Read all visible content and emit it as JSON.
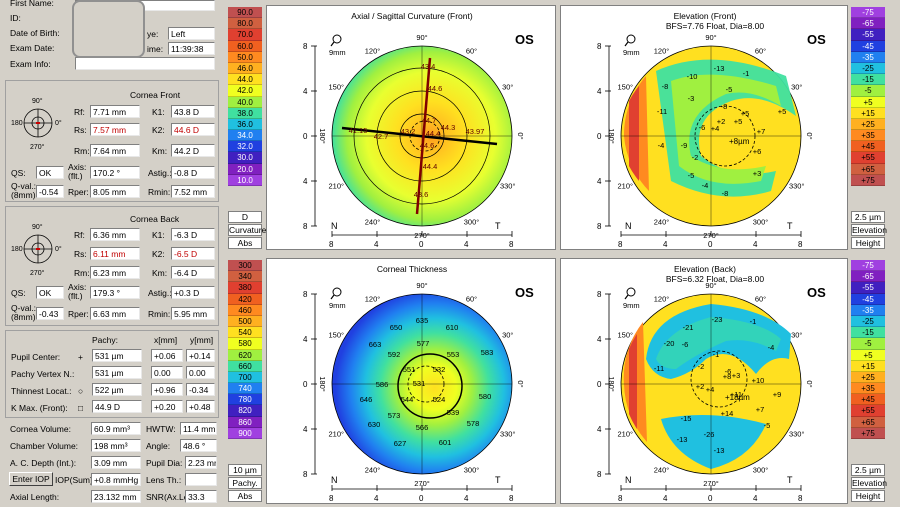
{
  "patient": {
    "first_name_label": "First Name:",
    "id_label": "ID:",
    "dob_label": "Date of Birth:",
    "exam_date_label": "Exam Date:",
    "exam_info_label": "Exam Info:",
    "eye_label": "ye:",
    "eye_value": "Left",
    "time_label": "ime:",
    "time_value": "11:39:38"
  },
  "cornea_front": {
    "title": "Cornea Front",
    "rf_label": "Rf:",
    "rf": "7.71 mm",
    "rs_label": "Rs:",
    "rs": "7.57 mm",
    "rm_label": "Rm:",
    "rm": "7.64 mm",
    "k1_label": "K1:",
    "k1": "43.8 D",
    "k2_label": "K2:",
    "k2": "44.6 D",
    "km_label": "Km:",
    "km": "44.2 D",
    "qs_label": "QS:",
    "qs": "OK",
    "axis_label": "Axis:",
    "axis_sub": "(flt.)",
    "axis": "170.2 °",
    "astig_label": "Astig.:",
    "astig": "-0.8 D",
    "qval_label": "Q-val.:",
    "qval_sub": "(8mm)",
    "qval": "-0.54",
    "rper_label": "Rper:",
    "rper": "8.05 mm",
    "rmin_label": "Rmin:",
    "rmin": "7.52 mm"
  },
  "cornea_back": {
    "title": "Cornea Back",
    "rf_label": "Rf:",
    "rf": "6.36 mm",
    "rs_label": "Rs:",
    "rs": "6.11 mm",
    "rm_label": "Rm:",
    "rm": "6.23 mm",
    "k1_label": "K1:",
    "k1": "-6.3 D",
    "k2_label": "K2:",
    "k2": "-6.5 D",
    "km_label": "Km:",
    "km": "-6.4 D",
    "qs_label": "QS:",
    "qs": "OK",
    "axis_label": "Axis:",
    "axis_sub": "(flt.)",
    "axis": "179.3 °",
    "astig_label": "Astig.:",
    "astig": "+0.3 D",
    "qval_label": "Q-val.:",
    "qval_sub": "(8mm)",
    "qval": "-0.43",
    "rper_label": "Rper:",
    "rper": "6.63 mm",
    "rmin_label": "Rmin:",
    "rmin": "5.95 mm"
  },
  "pachy": {
    "col_pachy": "Pachy:",
    "col_x": "x[mm]",
    "col_y": "y[mm]",
    "rows": [
      {
        "label": "Pupil Center:",
        "sym": "+",
        "value": "531 µm",
        "x": "+0.06",
        "y": "+0.14"
      },
      {
        "label": "Pachy Vertex N.:",
        "sym": "",
        "value": "531 µm",
        "x": "0.00",
        "y": "0.00"
      },
      {
        "label": "Thinnest Locat.:",
        "sym": "○",
        "value": "522 µm",
        "x": "+0.96",
        "y": "-0.34"
      },
      {
        "label": "K Max. (Front):",
        "sym": "□",
        "value": "44.9 D",
        "x": "+0.20",
        "y": "+0.48"
      }
    ]
  },
  "bottom": {
    "cornea_vol_label": "Cornea Volume:",
    "cornea_vol": "60.9 mm³",
    "hwtw_label": "HWTW:",
    "hwtw": "11.4 mm",
    "chamber_vol_label": "Chamber Volume:",
    "chamber_vol": "198 mm³",
    "angle_label": "Angle:",
    "angle": "48.6 °",
    "ac_depth_label": "A. C. Depth (Int.):",
    "ac_depth": "3.09 mm",
    "pupil_dia_label": "Pupil Dia:",
    "pupil_dia": "2.23 mm",
    "enter_iop": "Enter IOP",
    "iop_sum_label": "IOP(Sum):",
    "iop_sum": "+0.8 mmHg",
    "lens_th_label": "Lens Th.:",
    "lens_th": "",
    "axial_len_label": "Axial Length:",
    "axial_len": "23.132 mm",
    "snr_label": "SNR(Ax.Le",
    "snr": "33.3"
  },
  "scales": {
    "curvature": {
      "values": [
        "90.0",
        "80.0",
        "70.0",
        "60.0",
        "50.0",
        "46.0",
        "44.0",
        "42.0",
        "40.0",
        "38.0",
        "36.0",
        "34.0",
        "32.0",
        "30.0",
        "20.0",
        "10.0"
      ],
      "colors": [
        "#c05050",
        "#d06040",
        "#e04030",
        "#f06020",
        "#ff8a20",
        "#ffb020",
        "#ffe020",
        "#f0ff20",
        "#a0f040",
        "#40e0a0",
        "#20c0e0",
        "#2080f0",
        "#2040e0",
        "#4020c0",
        "#8020c0",
        "#a040e0"
      ],
      "unit": "D",
      "name": "Curvature",
      "mode": "Abs"
    },
    "elev_front": {
      "values": [
        "-75",
        "-65",
        "-55",
        "-45",
        "-35",
        "-25",
        "-15",
        "-5",
        "+5",
        "+15",
        "+25",
        "+35",
        "+45",
        "+55",
        "+65",
        "+75"
      ],
      "colors": [
        "#a040e0",
        "#8020c0",
        "#4020c0",
        "#2040e0",
        "#2080f0",
        "#20c0e0",
        "#40e0a0",
        "#a0f040",
        "#f0ff20",
        "#ffe020",
        "#ffb020",
        "#ff8a20",
        "#f06020",
        "#e04030",
        "#d06040",
        "#c05050"
      ],
      "unit": "2.5 µm",
      "name": "Elevation",
      "mode": "Height"
    },
    "thickness": {
      "values": [
        "300",
        "340",
        "380",
        "420",
        "460",
        "500",
        "540",
        "580",
        "620",
        "660",
        "700",
        "740",
        "780",
        "820",
        "860",
        "900"
      ],
      "colors": [
        "#c05050",
        "#d06040",
        "#e04030",
        "#f06020",
        "#ff8a20",
        "#ffb020",
        "#ffe020",
        "#f0ff20",
        "#a0f040",
        "#40e0a0",
        "#20c0e0",
        "#2080f0",
        "#2040e0",
        "#4020c0",
        "#8020c0",
        "#a040e0"
      ],
      "unit": "10 µm",
      "name": "Pachy.",
      "mode": "Abs"
    },
    "elev_back": {
      "values": [
        "-75",
        "-65",
        "-55",
        "-45",
        "-35",
        "-25",
        "-15",
        "-5",
        "+5",
        "+15",
        "+25",
        "+35",
        "+45",
        "+55",
        "+65",
        "+75"
      ],
      "colors": [
        "#a040e0",
        "#8020c0",
        "#4020c0",
        "#2040e0",
        "#2080f0",
        "#20c0e0",
        "#40e0a0",
        "#a0f040",
        "#f0ff20",
        "#ffe020",
        "#ffb020",
        "#ff8a20",
        "#f06020",
        "#e04030",
        "#d06040",
        "#c05050"
      ],
      "unit": "2.5 µm",
      "name": "Elevation",
      "mode": "Height"
    }
  },
  "maps": {
    "axial": {
      "title": "Axial / Sagittal Curvature (Front)",
      "subtitle": "",
      "eye": "OS",
      "zoom": "9mm",
      "labels": [
        "43.4",
        "44.6",
        "44.7",
        "44.4",
        "44.3",
        "43.97",
        "41.15",
        "42.7",
        "43.2",
        "44.6",
        "44.4",
        "43.6"
      ]
    },
    "elev_front": {
      "title": "Elevation (Front)",
      "subtitle": "BFS=7.76 Float, Dia=8.00",
      "eye": "OS",
      "zoom": "9mm",
      "center_label": "+8µm",
      "labels": [
        "-13",
        "-10",
        "-1",
        "-8",
        "-3",
        "-11",
        "-5",
        "-8",
        "+5",
        "+5",
        "+7",
        "+6",
        "+4",
        "+2",
        "-6",
        "+5",
        "-4",
        "-9",
        "-2",
        "-5",
        "+3",
        "-4",
        "-8"
      ]
    },
    "thickness": {
      "title": "Corneal Thickness",
      "subtitle": "",
      "eye": "OS",
      "zoom": "9mm",
      "labels": [
        "635",
        "650",
        "610",
        "663",
        "592",
        "577",
        "553",
        "583",
        "551",
        "532",
        "531",
        "586",
        "646",
        "544",
        "524",
        "580",
        "573",
        "539",
        "630",
        "578",
        "566",
        "627",
        "601"
      ]
    },
    "elev_back": {
      "title": "Elevation (Back)",
      "subtitle": "BFS=6.32 Float, Dia=8.00",
      "eye": "OS",
      "zoom": "9mm",
      "center_label": "+18µm",
      "labels": [
        "-21",
        "-23",
        "-1",
        "-20",
        "-6",
        "-4",
        "-11",
        "-2",
        "-1",
        "-6",
        "+3",
        "+10",
        "+2",
        "+4",
        "+8",
        "+9",
        "+14",
        "+7",
        "+11",
        "-15",
        "-26",
        "-5",
        "-13",
        "-13"
      ]
    }
  },
  "axis_text": {
    "deg90": "90°",
    "deg270": "270°",
    "deg180": "180°",
    "deg0": "0°",
    "deg120": "120°",
    "deg60": "60°",
    "deg150": "150°",
    "deg30": "30°",
    "deg210": "210°",
    "deg330": "330°",
    "deg240": "240°",
    "deg300": "300°",
    "N": "N",
    "T": "T",
    "ticks_y": [
      "8",
      "4",
      "0",
      "4",
      "8"
    ],
    "ticks_x": [
      "8",
      "4",
      "0",
      "4",
      "8"
    ]
  }
}
